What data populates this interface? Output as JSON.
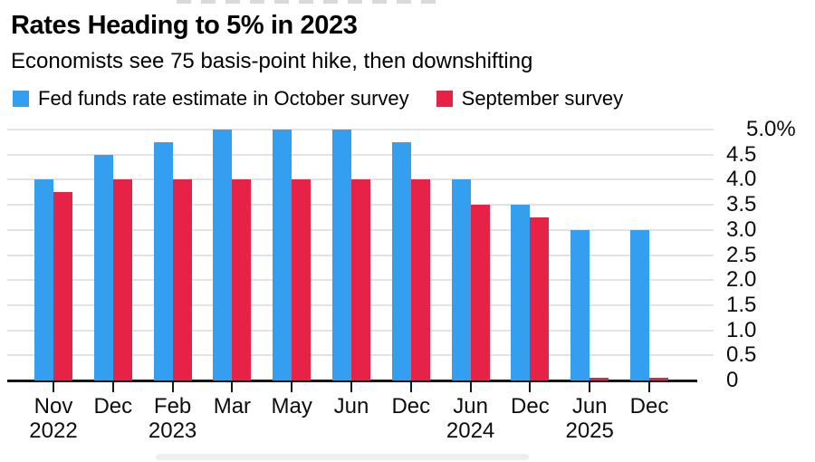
{
  "header": {
    "title": "Rates Heading to 5% in 2023",
    "subtitle": "Economists see 75 basis-point hike, then downshifting"
  },
  "legend": [
    {
      "label": "Fed funds rate estimate in October survey",
      "color": "#349fee",
      "icon": "blue-square-swatch"
    },
    {
      "label": "September survey",
      "color": "#e62346",
      "icon": "red-square-swatch"
    }
  ],
  "chart_data": {
    "type": "bar",
    "title": "Rates Heading to 5% in 2023",
    "subtitle": "Economists see 75 basis-point hike, then downshifting",
    "categories": [
      "Nov 2022",
      "Dec",
      "Feb 2023",
      "Mar",
      "May",
      "Jun",
      "Dec",
      "Jun 2024",
      "Dec",
      "Jun 2025",
      "Dec"
    ],
    "x_tick_lines": [
      [
        "Nov",
        "2022"
      ],
      [
        "Dec",
        ""
      ],
      [
        "Feb",
        "2023"
      ],
      [
        "Mar",
        ""
      ],
      [
        "May",
        ""
      ],
      [
        "Jun",
        ""
      ],
      [
        "Dec",
        ""
      ],
      [
        "Jun",
        "2024"
      ],
      [
        "Dec",
        ""
      ],
      [
        "Jun",
        "2025"
      ],
      [
        "Dec",
        ""
      ]
    ],
    "series": [
      {
        "name": "Fed funds rate estimate in October survey",
        "color": "#349fee",
        "values": [
          4.0,
          4.5,
          4.75,
          5.0,
          5.0,
          5.0,
          4.75,
          4.0,
          3.5,
          3.0,
          3.0
        ]
      },
      {
        "name": "September survey",
        "color": "#e62346",
        "values": [
          3.75,
          4.0,
          4.0,
          4.0,
          4.0,
          4.0,
          4.0,
          3.5,
          3.25,
          0.05,
          0.05
        ]
      }
    ],
    "ylim": [
      0,
      5.0
    ],
    "ytick_step": 0.5,
    "ytick_labels": [
      "0",
      "0.5",
      "1.0",
      "1.5",
      "2.0",
      "2.5",
      "3.0",
      "3.5",
      "4.0",
      "4.5",
      "5.0%"
    ],
    "y_axis_side": "right",
    "grid": true,
    "legend_position": "top"
  }
}
